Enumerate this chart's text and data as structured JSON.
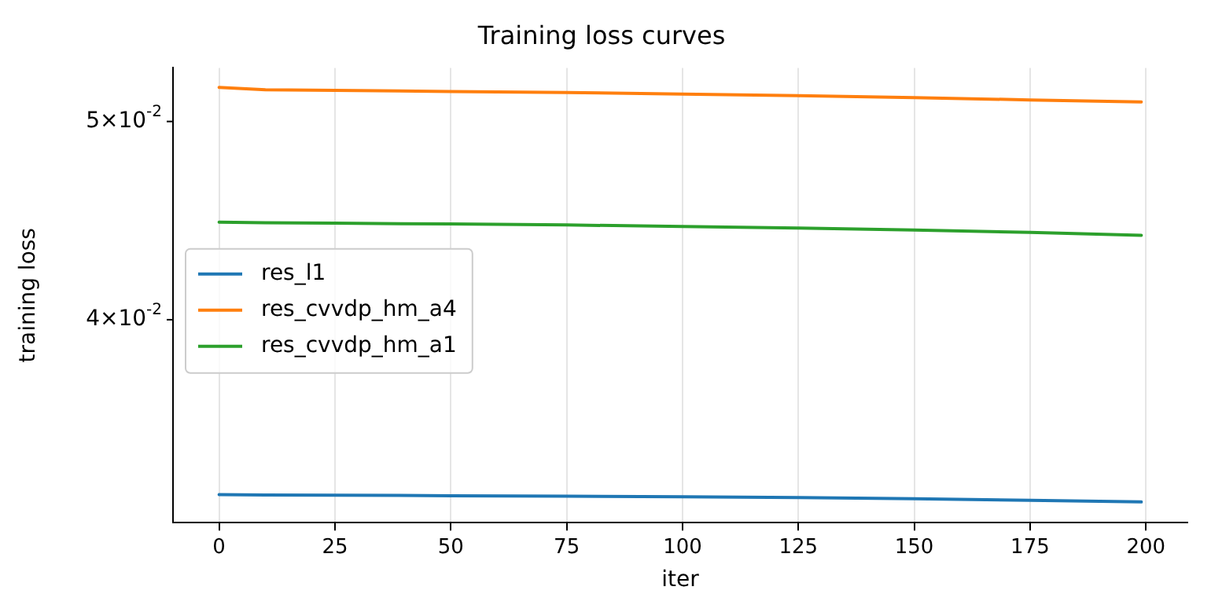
{
  "chart_data": {
    "type": "line",
    "title": "Training loss curves",
    "xlabel": "iter",
    "ylabel": "training loss",
    "x": [
      0,
      10,
      25,
      50,
      75,
      100,
      125,
      150,
      175,
      199
    ],
    "series": [
      {
        "name": "res_l1",
        "color": "#1f77b4",
        "values": [
          0.03285,
          0.03284,
          0.03283,
          0.03281,
          0.03279,
          0.03277,
          0.03274,
          0.0327,
          0.03264,
          0.03258
        ]
      },
      {
        "name": "res_cvvdp_hm_a4",
        "color": "#ff7f0e",
        "values": [
          0.05196,
          0.05182,
          0.05178,
          0.05172,
          0.05166,
          0.05157,
          0.05147,
          0.05136,
          0.05123,
          0.05111
        ]
      },
      {
        "name": "res_cvvdp_hm_a1",
        "color": "#2ca02c",
        "values": [
          0.04464,
          0.04461,
          0.04459,
          0.04455,
          0.0445,
          0.04443,
          0.04435,
          0.04425,
          0.04413,
          0.04399
        ]
      }
    ],
    "log": "y",
    "xlim": [
      -9.95,
      208.95
    ],
    "xticks": [
      0,
      25,
      50,
      75,
      100,
      125,
      150,
      175,
      200
    ],
    "ylim": [
      0.03183,
      0.05311
    ],
    "yticks": [
      {
        "value": 0.04,
        "label": "4×10$^{-2}$"
      },
      {
        "value": 0.05,
        "label": "5×10$^{-2}$"
      }
    ],
    "grid": "x",
    "legend": "center left",
    "marker": "none",
    "line_style": "solid"
  }
}
